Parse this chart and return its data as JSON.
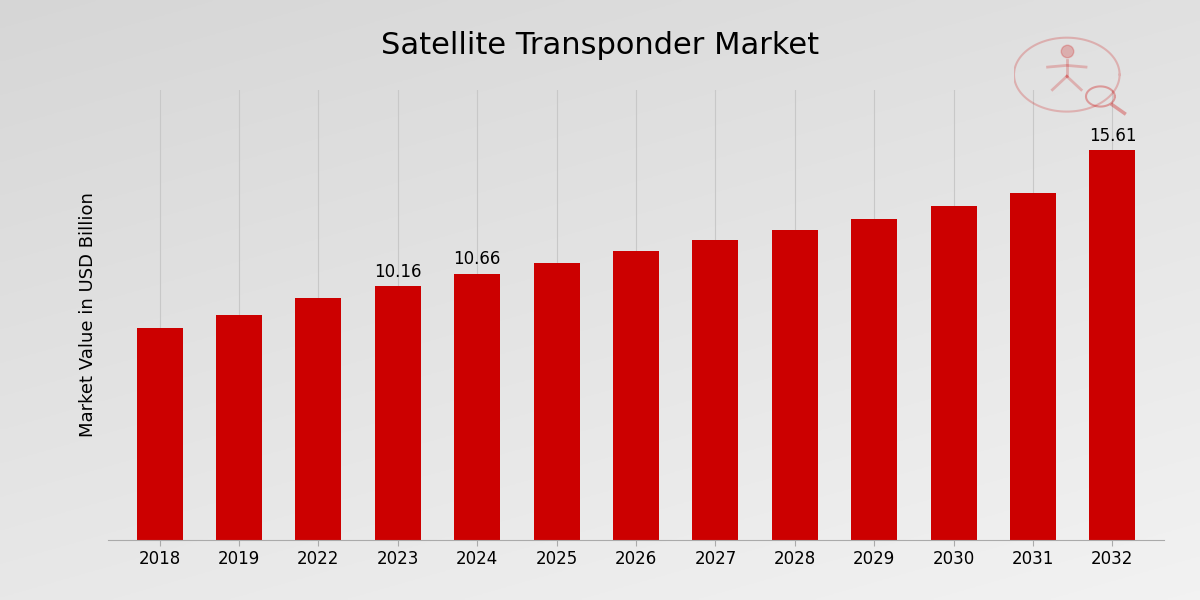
{
  "title": "Satellite Transponder Market",
  "ylabel": "Market Value in USD Billion",
  "categories": [
    "2018",
    "2019",
    "2022",
    "2023",
    "2024",
    "2025",
    "2026",
    "2027",
    "2028",
    "2029",
    "2030",
    "2031",
    "2032"
  ],
  "values": [
    8.5,
    9.0,
    9.7,
    10.16,
    10.66,
    11.1,
    11.55,
    12.0,
    12.4,
    12.85,
    13.35,
    13.9,
    15.61
  ],
  "bar_color": "#CC0000",
  "label_map_indices": [
    3,
    4,
    12
  ],
  "label_map_texts": [
    "10.16",
    "10.66",
    "15.61"
  ],
  "ylim": [
    0,
    18
  ],
  "title_fontsize": 22,
  "ylabel_fontsize": 13,
  "tick_fontsize": 12,
  "bar_label_fontsize": 12,
  "grid_color": "#C8C8C8",
  "bottom_strip_color": "#CC0000",
  "bg_color_top": "#F0F0F0",
  "bg_color_bottom": "#C8C8C8"
}
